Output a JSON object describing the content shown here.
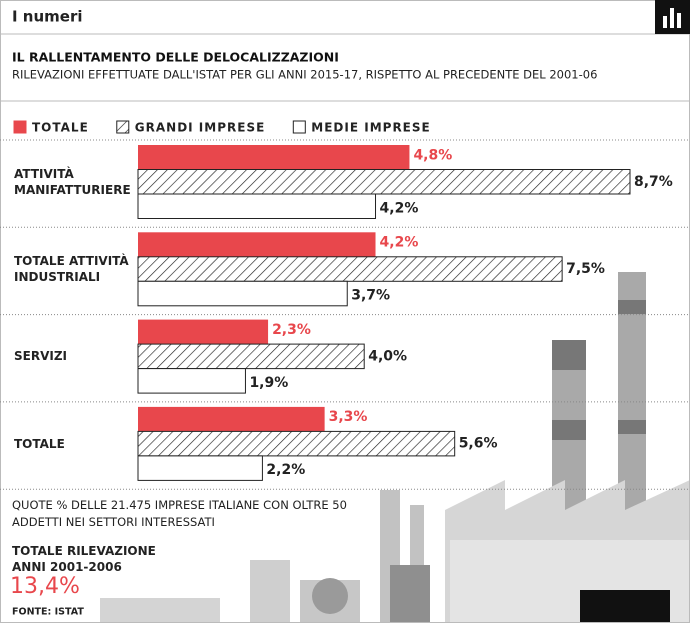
{
  "header": "I numeri",
  "chart_data": {
    "type": "hbar",
    "title": "IL RALLENTAMENTO DELLE DELOCALIZZAZIONI",
    "subtitle": "RILEVAZIONI EFFETTUATE DALL'ISTAT PER GLI ANNI 2015-17, RISPETTO AL PRECEDENTE DEL 2001-06",
    "categories": [
      "ATTIVITÀ MANIFATTURIERE",
      "TOTALE ATTIVITÀ INDUSTRIALI",
      "SERVIZI",
      "TOTALE"
    ],
    "series": [
      {
        "name": "TOTALE",
        "color": "#e8474c",
        "values": [
          4.8,
          4.2,
          2.3,
          3.3
        ],
        "value_labels": [
          "4,8%",
          "4,2%",
          "2,3%",
          "3,3%"
        ]
      },
      {
        "name": "GRANDI IMPRESE",
        "color": "#ffffff",
        "pattern": "hatch",
        "values": [
          8.7,
          7.5,
          4.0,
          5.6
        ],
        "value_labels": [
          "8,7%",
          "7,5%",
          "4,0%",
          "5,6%"
        ]
      },
      {
        "name": "MEDIE IMPRESE",
        "color": "#ffffff",
        "values": [
          4.2,
          3.7,
          1.9,
          2.2
        ],
        "value_labels": [
          "4,2%",
          "3,7%",
          "1,9%",
          "2,2%"
        ]
      }
    ],
    "note": "QUOTE % DELLE 21.475 IMPRESE ITALIANE CON OLTRE 50 ADDETTI NEI SETTORI INTERESSATI",
    "total_label": "TOTALE RILEVAZIONE ANNI 2001-2006",
    "total_value": "13,4%",
    "source": "FONTE: ISTAT"
  }
}
